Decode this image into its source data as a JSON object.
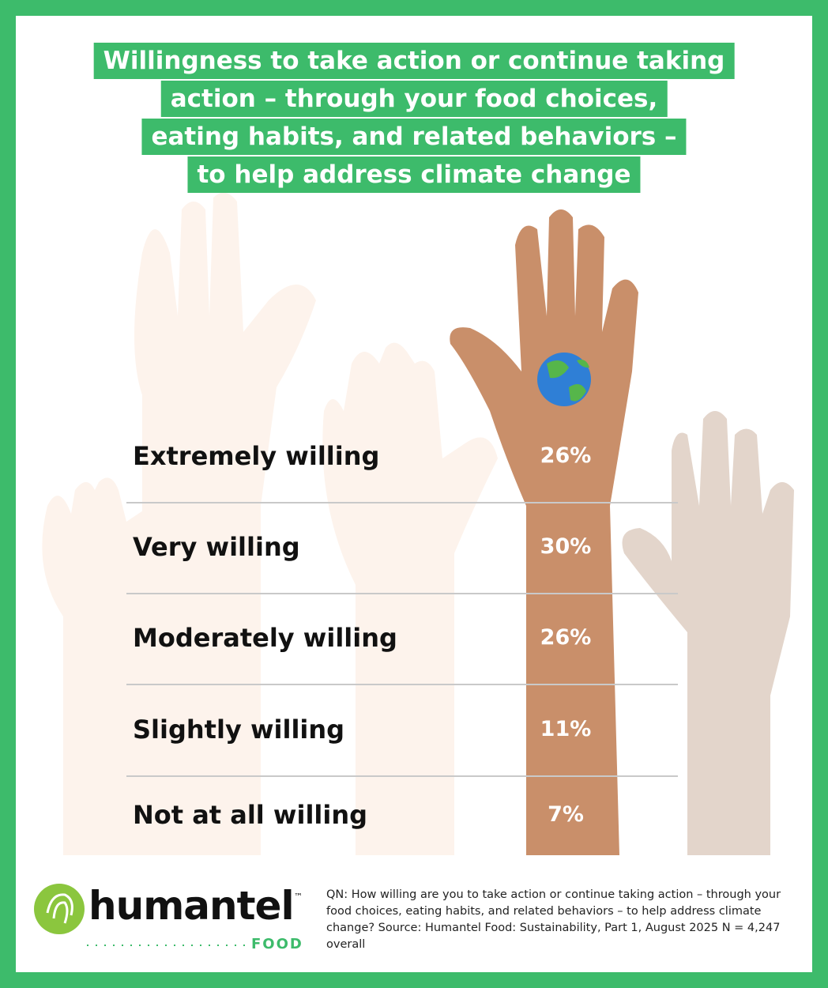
{
  "title": {
    "lines": [
      "Willingness to take action or continue taking",
      "action – through your food choices,",
      "eating habits, and related behaviors –",
      "to help address climate change"
    ]
  },
  "table": {
    "rows": [
      {
        "label": "Extremely willing",
        "value": "26%"
      },
      {
        "label": "Very willing",
        "value": "30%"
      },
      {
        "label": "Moderately willing",
        "value": "26%"
      },
      {
        "label": "Slightly willing",
        "value": "11%"
      },
      {
        "label": "Not at all willing",
        "value": "7%"
      }
    ]
  },
  "footer": {
    "logo": {
      "name": "humantel",
      "trademark": "™",
      "sub": "FOOD"
    },
    "note": "QN: How willing are you to take action or continue taking action – through your food choices, eating habits, and related behaviors – to help address climate change? Source: Humantel Food: Sustainability, Part 1, August 2025 N = 4,247 overall"
  }
}
